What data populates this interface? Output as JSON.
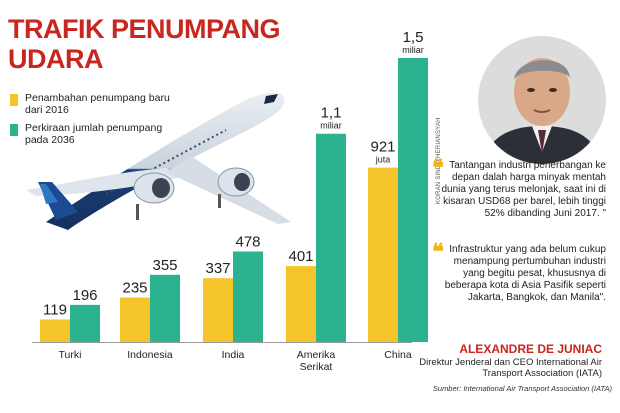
{
  "title": "TRAFIK PENUMPANG UDARA",
  "legend": [
    {
      "label": "Penambahan penumpang baru dari 2016",
      "color": "#f5c42a"
    },
    {
      "label": "Perkiraan jumlah penumpang pada 2036",
      "color": "#2bb38f"
    }
  ],
  "chart_data": {
    "type": "bar",
    "categories": [
      "Turki",
      "Indonesia",
      "India",
      "Amerika Serikat",
      "China"
    ],
    "series": [
      {
        "name": "Penambahan penumpang baru dari 2016",
        "values": [
          119,
          235,
          337,
          401,
          921
        ],
        "color": "#f5c42a"
      },
      {
        "name": "Perkiraan jumlah penumpang pada 2036",
        "values": [
          196,
          355,
          478,
          1100,
          1500
        ],
        "color": "#2bb38f"
      }
    ],
    "labels": [
      [
        "119",
        "196"
      ],
      [
        "235",
        "355"
      ],
      [
        "337",
        "478"
      ],
      [
        "401",
        "1,1"
      ],
      [
        "921",
        "1,5"
      ]
    ],
    "unit_labels": [
      [
        "",
        ""
      ],
      [
        "",
        ""
      ],
      [
        "",
        ""
      ],
      [
        "",
        "miliar"
      ],
      [
        "juta",
        "miliar"
      ]
    ],
    "category_lines": [
      [
        "Turki"
      ],
      [
        "Indonesia"
      ],
      [
        "India"
      ],
      [
        "Amerika",
        "Serikat"
      ],
      [
        "China"
      ]
    ],
    "ylim": [
      0,
      1500
    ]
  },
  "quotes": [
    "Tantangan industri penerbangan ke depan dalah harga minyak mentah dunia yang terus melonjak, saat ini di kisaran USD68 per barel, lebih tinggi 52% dibanding Juni 2017. \"",
    "Infrastruktur yang ada belum cukup menampung pertumbuhan industri yang begitu pesat, khususnya di beberapa kota di Asia Pasifik seperti Jakarta, Bangkok, dan Manila\"."
  ],
  "photo_credit": "KORAN SINDO/HERIANSYAH",
  "person": {
    "name": "ALEXANDRE DE JUNIAC",
    "role": "Direktur Jenderal dan CEO International Air Transport Association (IATA)"
  },
  "source": "Sumber: International Air Transport Association (IATA)",
  "colors": {
    "accent": "#c8261f",
    "yellow": "#f5c42a",
    "green": "#2bb38f"
  }
}
